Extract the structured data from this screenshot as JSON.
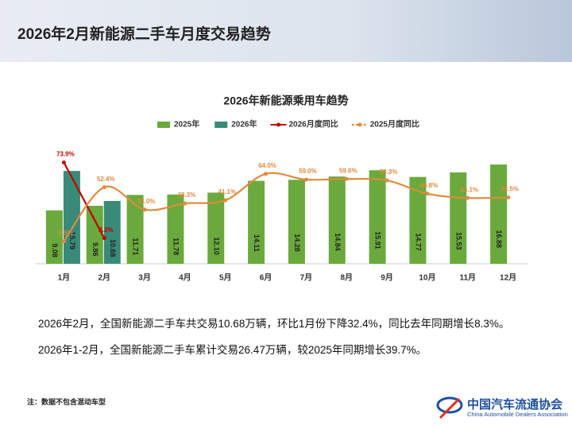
{
  "header": {
    "title": "2026年2月新能源二手车月度交易趋势"
  },
  "chart_data": {
    "type": "bar",
    "title": "2026年新能源乘用车趋势",
    "categories": [
      "1月",
      "2月",
      "3月",
      "4月",
      "5月",
      "6月",
      "7月",
      "8月",
      "9月",
      "10月",
      "11月",
      "12月"
    ],
    "ylim": [
      0,
      20
    ],
    "y2lim": [
      -14,
      88
    ],
    "legend": "top",
    "series": [
      {
        "name": "2025年",
        "color": "#6aaa3c",
        "values": [
          9.08,
          9.86,
          11.71,
          11.78,
          12.1,
          14.11,
          14.28,
          14.84,
          15.91,
          14.77,
          15.53,
          16.88
        ],
        "value_labels": [
          "9.08",
          "9.86",
          "11.71",
          "11.78",
          "12.10",
          "14.11",
          "14.28",
          "14.84",
          "15.91",
          "14.77",
          "15.53",
          "16.88"
        ]
      },
      {
        "name": "2026年",
        "color": "#3a8a78",
        "values": [
          15.79,
          10.68,
          null,
          null,
          null,
          null,
          null,
          null,
          null,
          null,
          null,
          null
        ],
        "value_labels": [
          "15.79",
          "10.68",
          null,
          null,
          null,
          null,
          null,
          null,
          null,
          null,
          null,
          null
        ]
      },
      {
        "name": "2026月度同比",
        "type": "line",
        "axis": "y2",
        "color": "#c00000",
        "values": [
          73.9,
          8.3,
          null,
          null,
          null,
          null,
          null,
          null,
          null,
          null,
          null,
          null
        ],
        "value_labels": [
          "73.9%",
          "8.3%",
          null,
          null,
          null,
          null,
          null,
          null,
          null,
          null,
          null,
          null
        ]
      },
      {
        "name": "2025月度同比",
        "type": "line",
        "axis": "y2",
        "color": "#e08a3c",
        "smooth": true,
        "values": [
          5.5,
          52.4,
          33.0,
          38.3,
          41.1,
          64.0,
          59.0,
          59.6,
          58.3,
          46.8,
          43.1,
          43.5
        ],
        "value_labels": [
          "5.5%",
          "52.4%",
          "33.0%",
          "38.3%",
          "41.1%",
          "64.0%",
          "59.0%",
          "59.6%",
          "58.3%",
          "46.8%",
          "43.1%",
          "43.5%"
        ]
      }
    ]
  },
  "text": {
    "line1": "2026年2月，全国新能源二手车共交易10.68万辆，环比1月份下降32.4%，同比去年同期增长8.3%。",
    "line2": "2026年1-2月，全国新能源二手车累计交易26.47万辆，较2025年同期增长39.7%。",
    "note": "注：数据不包含混动车型",
    "logo_cn": "中国汽车流通协会",
    "logo_en": "China Automobile Dealers Association"
  }
}
